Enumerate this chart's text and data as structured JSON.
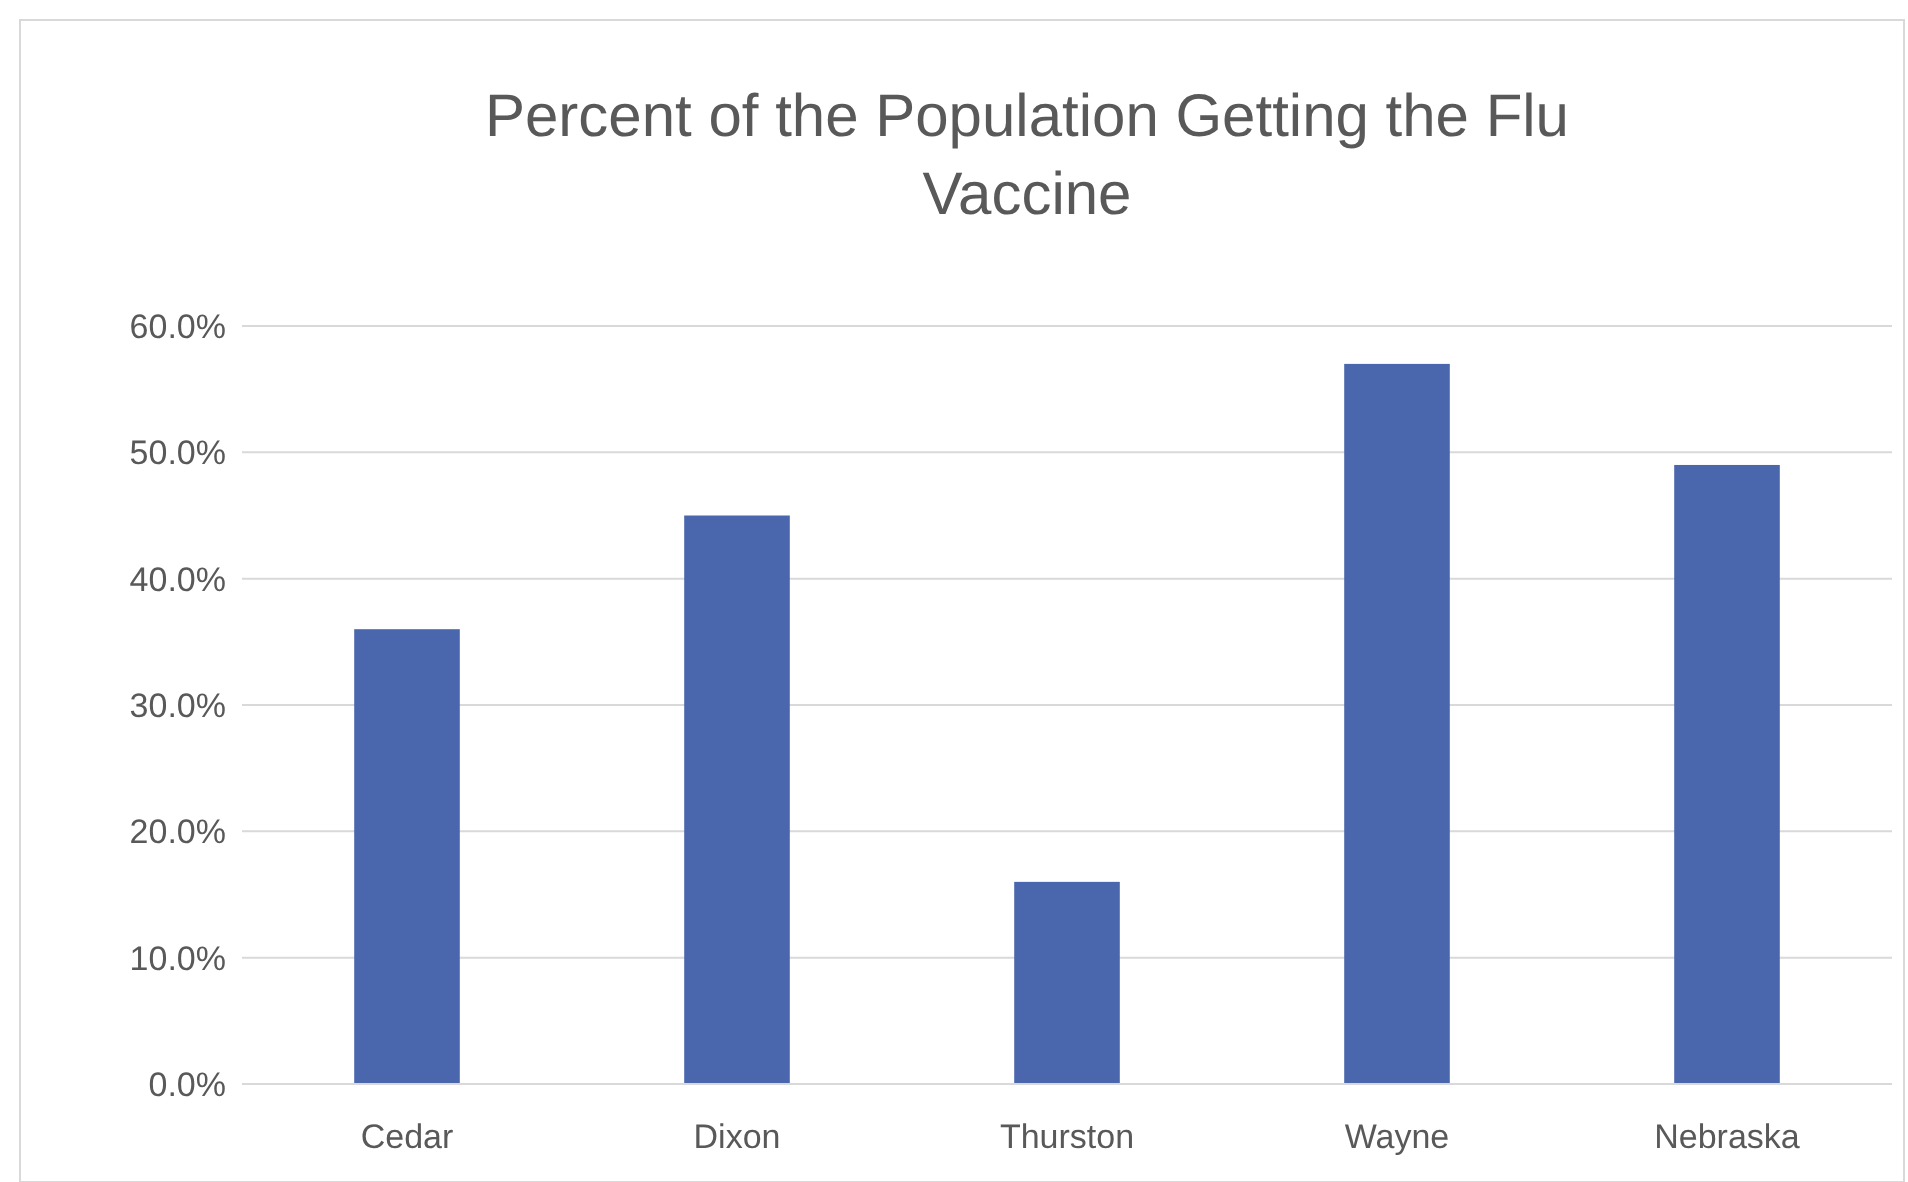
{
  "chart_data": {
    "type": "bar",
    "title": "Percent of the Population Getting the Flu Vaccine",
    "categories": [
      "Cedar",
      "Dixon",
      "Thurston",
      "Wayne",
      "Nebraska"
    ],
    "values": [
      36,
      45,
      16,
      57,
      49
    ],
    "color": "#4a66ac",
    "ylim": [
      0,
      60
    ],
    "yticks": [
      {
        "value": 0,
        "label": "0.0%"
      },
      {
        "value": 10,
        "label": "10.0%"
      },
      {
        "value": 20,
        "label": "20.0%"
      },
      {
        "value": 30,
        "label": "30.0%"
      },
      {
        "value": 40,
        "label": "40.0%"
      },
      {
        "value": 50,
        "label": "50.0%"
      },
      {
        "value": 60,
        "label": "60.0%"
      }
    ],
    "grid": true
  }
}
